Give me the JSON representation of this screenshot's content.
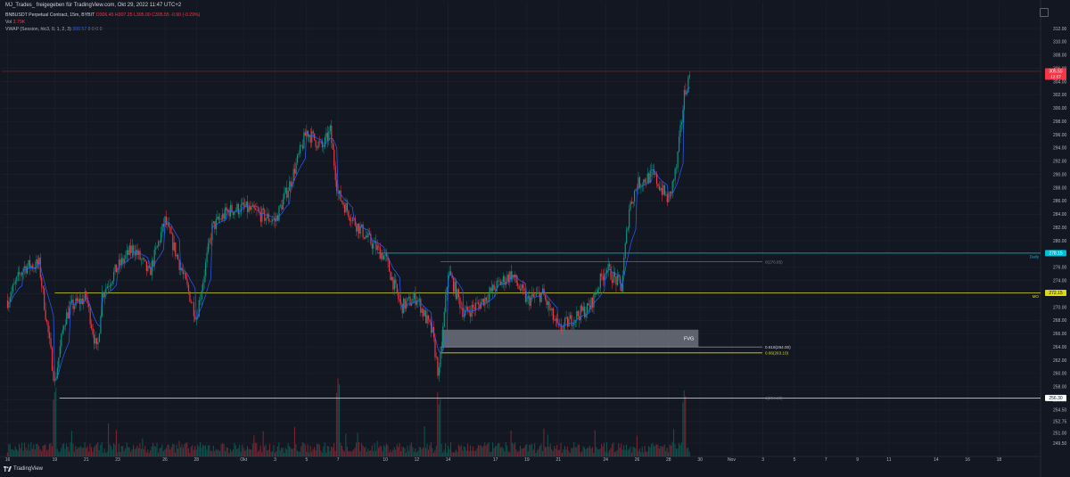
{
  "header": {
    "title": "MJ_Trades_ freigegeben für TradingView.com, Okt 29, 2022 11:47 UTC+2"
  },
  "legend": {
    "symbol": "BNBUSDT Perpetual Contract, 15m, BYBIT",
    "ohlc": "O306.45 H307.25 L305.00 C305.55 -0.90 (-0.29%)",
    "vol_label": "Vol",
    "vol_value": "3.79K",
    "vwap_label": "VWAP (Session, hlc3, 0, 1, 2, 3)",
    "vwap_value": "300.57",
    "vwap_tail": "0 0 0 0"
  },
  "footer": {
    "brand": "TradingView"
  },
  "colors": {
    "background": "#131722",
    "up": "#089981",
    "down": "#f23645",
    "vwap": "#2962ff",
    "daily_level": "#00bcd4",
    "mo_level": "#d8d81c",
    "fvg": "#9ca0aa",
    "white_level": "#e0e3eb"
  },
  "chart_data": {
    "type": "candlestick",
    "y_ticks": [
      249.5,
      251.0,
      252.75,
      254.5,
      256.0,
      258.0,
      260.0,
      262.0,
      264.0,
      266.0,
      268.0,
      270.0,
      272.0,
      274.0,
      276.0,
      278.0,
      280.0,
      282.0,
      284.0,
      286.0,
      288.0,
      290.0,
      292.0,
      294.0,
      296.0,
      298.0,
      300.0,
      302.0,
      304.0,
      306.0,
      308.0,
      310.0,
      312.0
    ],
    "x_ticks": [
      "16",
      "19",
      "21",
      "23",
      "26",
      "28",
      "Okt",
      "3",
      "5",
      "7",
      "10",
      "12",
      "14",
      "17",
      "19",
      "21",
      "24",
      "26",
      "28",
      "30",
      "Nov",
      "3",
      "5",
      "7",
      "9",
      "11",
      "14",
      "16",
      "18"
    ],
    "price_labels": [
      {
        "name": "last",
        "text": "305.55",
        "sub": "12:57",
        "value": 305.55
      },
      {
        "name": "daily",
        "text": "278.15",
        "value": 278.15
      },
      {
        "name": "mo",
        "text": "272.15",
        "value": 272.15
      },
      {
        "name": "low",
        "text": "256.30",
        "value": 256.3
      }
    ],
    "level_labels": [
      {
        "name": "daily",
        "text": "Daily"
      },
      {
        "name": "mo",
        "text": "MO"
      }
    ],
    "fib_labels": [
      {
        "text": "0(276.85)",
        "value": 276.85
      },
      {
        "text": "0.618(264.00)",
        "value": 264.0
      },
      {
        "text": "0.66(263.10)",
        "value": 263.1
      },
      {
        "text": "1(256.30)",
        "value": 256.3
      }
    ],
    "fvg": {
      "label": "FVG",
      "top": 266.6,
      "bottom": 264.0
    },
    "path": [
      {
        "d": "Sep 16",
        "p": 271.0
      },
      {
        "d": "Sep 17",
        "p": 276.0
      },
      {
        "d": "Sep 18",
        "p": 276.5
      },
      {
        "d": "Sep 19",
        "p": 258.5
      },
      {
        "d": "Sep 19.6",
        "p": 268.0
      },
      {
        "d": "Sep 20",
        "p": 270.0
      },
      {
        "d": "Sep 21",
        "p": 271.5
      },
      {
        "d": "Sep 21.7",
        "p": 263.0
      },
      {
        "d": "Sep 22",
        "p": 272.0
      },
      {
        "d": "Sep 23",
        "p": 276.0
      },
      {
        "d": "Sep 24",
        "p": 279.0
      },
      {
        "d": "Sep 25",
        "p": 275.0
      },
      {
        "d": "Sep 26",
        "p": 283.0
      },
      {
        "d": "Sep 27",
        "p": 276.0
      },
      {
        "d": "Sep 28",
        "p": 268.5
      },
      {
        "d": "Sep 29",
        "p": 282.0
      },
      {
        "d": "Sep 30",
        "p": 284.5
      },
      {
        "d": "Okt 1",
        "p": 285.0
      },
      {
        "d": "Okt 2",
        "p": 284.0
      },
      {
        "d": "Okt 3",
        "p": 283.0
      },
      {
        "d": "Okt 4",
        "p": 289.0
      },
      {
        "d": "Okt 5",
        "p": 296.5
      },
      {
        "d": "Okt 6",
        "p": 294.0
      },
      {
        "d": "Okt 6.5",
        "p": 296.5
      },
      {
        "d": "Okt 7",
        "p": 287.0
      },
      {
        "d": "Okt 8",
        "p": 283.0
      },
      {
        "d": "Okt 9",
        "p": 280.0
      },
      {
        "d": "Okt 10",
        "p": 277.5
      },
      {
        "d": "Okt 11",
        "p": 270.0
      },
      {
        "d": "Okt 12",
        "p": 271.5
      },
      {
        "d": "Okt 13",
        "p": 266.0
      },
      {
        "d": "Okt 13.4",
        "p": 259.5
      },
      {
        "d": "Okt 14",
        "p": 275.5
      },
      {
        "d": "Okt 15",
        "p": 269.0
      },
      {
        "d": "Okt 16",
        "p": 270.5
      },
      {
        "d": "Okt 17",
        "p": 273.0
      },
      {
        "d": "Okt 18",
        "p": 275.0
      },
      {
        "d": "Okt 19",
        "p": 271.0
      },
      {
        "d": "Okt 20",
        "p": 272.0
      },
      {
        "d": "Okt 21",
        "p": 266.5
      },
      {
        "d": "Okt 22",
        "p": 268.5
      },
      {
        "d": "Okt 23",
        "p": 270.0
      },
      {
        "d": "Okt 24",
        "p": 276.0
      },
      {
        "d": "Okt 25",
        "p": 273.0
      },
      {
        "d": "Okt 25.5",
        "p": 285.0
      },
      {
        "d": "Okt 26",
        "p": 288.5
      },
      {
        "d": "Okt 27",
        "p": 290.0
      },
      {
        "d": "Okt 28",
        "p": 286.0
      },
      {
        "d": "Okt 28.5",
        "p": 291.0
      },
      {
        "d": "Okt 29",
        "p": 302.0
      },
      {
        "d": "Okt 29.4",
        "p": 305.5
      }
    ]
  }
}
